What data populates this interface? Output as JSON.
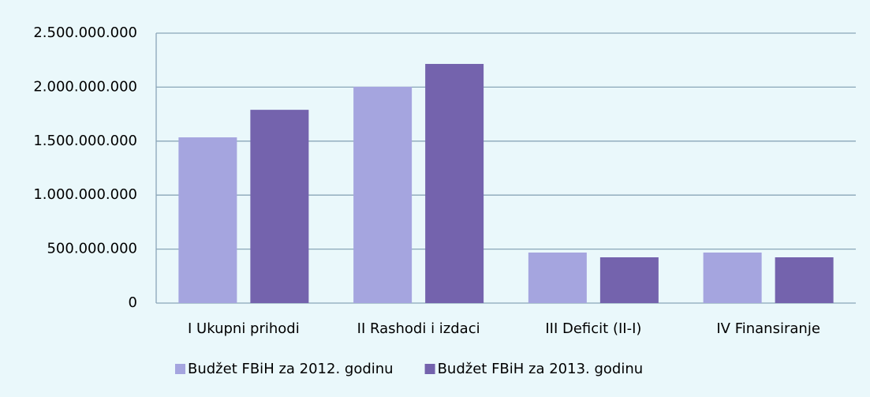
{
  "chart_data": {
    "type": "bar",
    "categories": [
      "I  Ukupni prihodi",
      "II Rashodi i izdaci",
      "III Deficit (II-I)",
      "IV Finansiranje"
    ],
    "series": [
      {
        "name": "Budžet FBiH za 2012. godinu",
        "color": "#a5a5df",
        "values": [
          1535000000,
          2003000000,
          468000000,
          468000000
        ]
      },
      {
        "name": "Budžet FBiH za 2013. godinu",
        "color": "#7463ad",
        "values": [
          1790000000,
          2215000000,
          424000000,
          424000000
        ]
      }
    ],
    "ylim": [
      0,
      2500000000
    ],
    "yticks": [
      0,
      {
        "value": 500000000,
        "label": "500.000.000"
      },
      {
        "value": 1000000000,
        "label": "1.000.000.000"
      },
      {
        "value": 1500000000,
        "label": "1.500.000.000"
      },
      {
        "value": 2000000000,
        "label": "2.000.000.000"
      },
      {
        "value": 2500000000,
        "label": "2.500.000.000"
      }
    ],
    "grid": true,
    "legend": "bottom"
  }
}
